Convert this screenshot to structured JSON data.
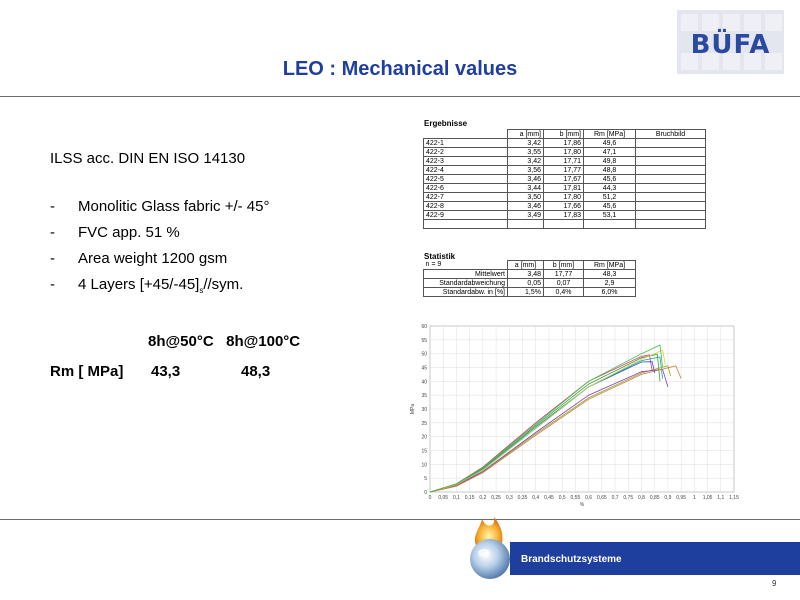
{
  "logo": {
    "text": "BÜFA"
  },
  "title": "LEO : Mechanical  values",
  "left": {
    "standard": "ILSS acc. DIN EN ISO 14130",
    "bullets": [
      "Monolitic Glass fabric +/- 45°",
      "FVC app. 51 %",
      "Area weight 1200 gsm"
    ],
    "bullet4_main": "4 Layers   [+45/-45]",
    "bullet4_sub": "s",
    "bullet4_tail": "//sym.",
    "bullet_dash": "-",
    "cond_header": "8h@50°C   8h@100°C",
    "rm_label": "Rm [ MPa]",
    "rm_values": [
      "43,3",
      "48,3"
    ]
  },
  "results": {
    "title": "Ergebnisse",
    "columns": [
      "",
      "a [mm]",
      "b [mm]",
      "Rm [MPa]",
      "Bruchbild"
    ],
    "rows": [
      [
        "422-1",
        "3,42",
        "17,86",
        "49,6",
        ""
      ],
      [
        "422-2",
        "3,55",
        "17,80",
        "47,1",
        ""
      ],
      [
        "422-3",
        "3,42",
        "17,71",
        "49,8",
        ""
      ],
      [
        "422-4",
        "3,56",
        "17,77",
        "48,8",
        ""
      ],
      [
        "422-5",
        "3,46",
        "17,67",
        "45,6",
        ""
      ],
      [
        "422-6",
        "3,44",
        "17,81",
        "44,3",
        ""
      ],
      [
        "422-7",
        "3,50",
        "17,80",
        "51,2",
        ""
      ],
      [
        "422-8",
        "3,46",
        "17,66",
        "45,6",
        ""
      ],
      [
        "422-9",
        "3,49",
        "17,83",
        "53,1",
        ""
      ],
      [
        "",
        "",
        "",
        "",
        ""
      ]
    ]
  },
  "statistics": {
    "title": "Statistik",
    "n": "n = 9",
    "columns": [
      "",
      "a [mm]",
      "b [mm]",
      "Rm [MPa]"
    ],
    "rows": [
      [
        "Mittelwert",
        "3,48",
        "17,77",
        "48,3"
      ],
      [
        "Standardabweichung",
        "0,05",
        "0,07",
        "2,9"
      ],
      [
        "Standardabw. in [%]",
        "1,5%",
        "0,4%",
        "6,0%"
      ]
    ]
  },
  "chart_data": {
    "type": "line",
    "xlabel": "%",
    "ylabel": "MPa",
    "xlim": [
      0,
      1.15
    ],
    "ylim": [
      0,
      60
    ],
    "x_ticks": [
      "0",
      "0,05",
      "0,1",
      "0,15",
      "0,2",
      "0,25",
      "0,3",
      "0,35",
      "0,4",
      "0,45",
      "0,5",
      "0,55",
      "0,6",
      "0,65",
      "0,7",
      "0,75",
      "0,8",
      "0,85",
      "0,9",
      "0,95",
      "1",
      "1,05",
      "1,1",
      "1,15"
    ],
    "y_ticks": [
      "0",
      "5",
      "10",
      "15",
      "20",
      "25",
      "30",
      "35",
      "40",
      "45",
      "50",
      "55",
      "60"
    ],
    "series": [
      {
        "color": "#e03080",
        "points": [
          [
            0,
            0
          ],
          [
            0.1,
            3
          ],
          [
            0.2,
            9
          ],
          [
            0.4,
            25
          ],
          [
            0.6,
            40
          ],
          [
            0.8,
            49
          ],
          [
            0.83,
            49.6
          ],
          [
            0.84,
            44
          ]
        ]
      },
      {
        "color": "#3050d0",
        "points": [
          [
            0,
            0
          ],
          [
            0.1,
            2.5
          ],
          [
            0.2,
            8
          ],
          [
            0.4,
            23
          ],
          [
            0.6,
            38
          ],
          [
            0.8,
            47
          ],
          [
            0.84,
            47.1
          ],
          [
            0.85,
            43
          ]
        ]
      },
      {
        "color": "#30a030",
        "points": [
          [
            0,
            0
          ],
          [
            0.1,
            2.8
          ],
          [
            0.2,
            8.5
          ],
          [
            0.4,
            24
          ],
          [
            0.6,
            39
          ],
          [
            0.8,
            48.5
          ],
          [
            0.86,
            49.8
          ],
          [
            0.87,
            40
          ]
        ]
      },
      {
        "color": "#20a0a0",
        "points": [
          [
            0,
            0
          ],
          [
            0.1,
            2.7
          ],
          [
            0.2,
            8.2
          ],
          [
            0.4,
            23.5
          ],
          [
            0.6,
            38
          ],
          [
            0.8,
            47.5
          ],
          [
            0.87,
            48.8
          ],
          [
            0.88,
            41
          ]
        ]
      },
      {
        "color": "#a0a020",
        "points": [
          [
            0,
            0
          ],
          [
            0.1,
            2.2
          ],
          [
            0.2,
            7.2
          ],
          [
            0.4,
            21
          ],
          [
            0.6,
            34
          ],
          [
            0.8,
            43
          ],
          [
            0.9,
            45.6
          ],
          [
            0.91,
            42
          ]
        ]
      },
      {
        "color": "#8040c0",
        "points": [
          [
            0,
            0
          ],
          [
            0.1,
            2.4
          ],
          [
            0.2,
            7.5
          ],
          [
            0.4,
            21.5
          ],
          [
            0.6,
            35
          ],
          [
            0.8,
            43.5
          ],
          [
            0.88,
            44.3
          ],
          [
            0.9,
            38
          ]
        ]
      },
      {
        "color": "#d0d040",
        "points": [
          [
            0,
            0
          ],
          [
            0.1,
            2.6
          ],
          [
            0.2,
            8
          ],
          [
            0.4,
            23
          ],
          [
            0.6,
            38
          ],
          [
            0.8,
            48
          ],
          [
            0.88,
            51.2
          ],
          [
            0.89,
            46
          ]
        ]
      },
      {
        "color": "#c08040",
        "points": [
          [
            0,
            0
          ],
          [
            0.1,
            2.1
          ],
          [
            0.2,
            7
          ],
          [
            0.4,
            20.5
          ],
          [
            0.6,
            33.5
          ],
          [
            0.8,
            42.5
          ],
          [
            0.93,
            45.6
          ],
          [
            0.95,
            41
          ]
        ]
      },
      {
        "color": "#40c040",
        "points": [
          [
            0,
            0
          ],
          [
            0.1,
            2.9
          ],
          [
            0.2,
            8.8
          ],
          [
            0.4,
            24.5
          ],
          [
            0.6,
            40
          ],
          [
            0.8,
            50
          ],
          [
            0.87,
            53.1
          ],
          [
            0.88,
            45
          ]
        ]
      }
    ]
  },
  "footer": {
    "text": "Brandschutzsysteme",
    "page": "9"
  }
}
